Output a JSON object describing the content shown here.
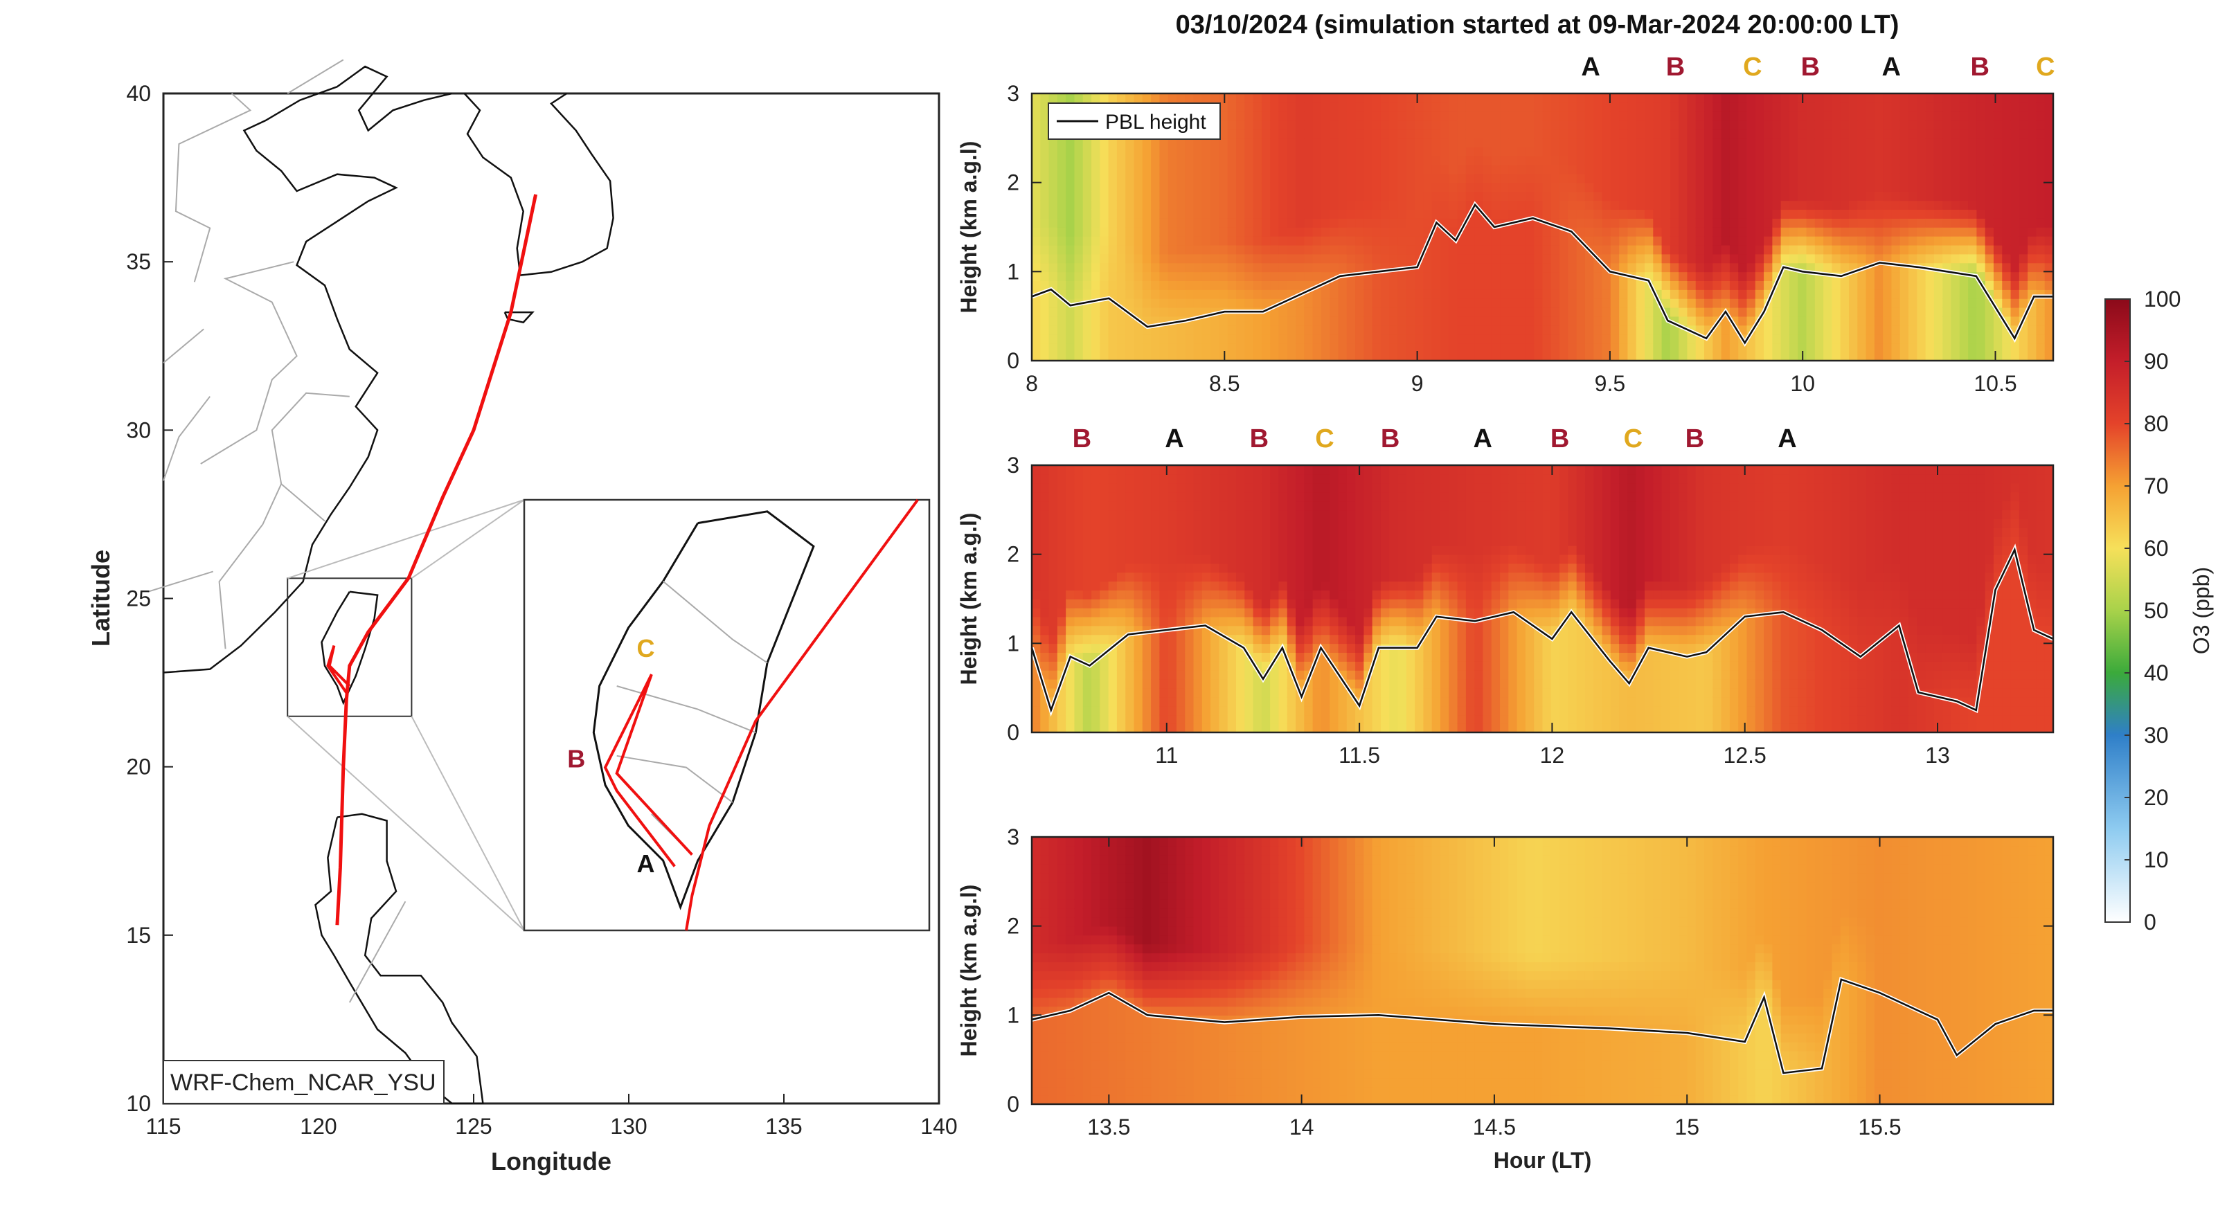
{
  "title": "03/10/2024 (simulation started at 09-Mar-2024 20:00:00 LT)",
  "map": {
    "xlabel": "Longitude",
    "ylabel": "Latitude",
    "xticks": [
      115,
      120,
      125,
      130,
      135,
      140
    ],
    "yticks": [
      10,
      15,
      20,
      25,
      30,
      35,
      40
    ],
    "xlim": [
      115,
      140
    ],
    "ylim": [
      10,
      40
    ],
    "model_label": "WRF-Chem_NCAR_YSU",
    "inset_labels": [
      {
        "text": "C",
        "color": "#E0A81E"
      },
      {
        "text": "B",
        "color": "#A01830"
      },
      {
        "text": "A",
        "color": "#111111"
      }
    ],
    "track_color": "#F01010"
  },
  "chart_data": [
    {
      "type": "heatmap",
      "ylabel": "Height (km a.g.l)",
      "xlim": [
        8.0,
        10.65
      ],
      "ylim": [
        0,
        3
      ],
      "xticks": [
        8,
        8.5,
        9,
        9.5,
        10,
        10.5
      ],
      "yticks": [
        0,
        1,
        2,
        3
      ],
      "legend": {
        "label": "PBL height",
        "placement": "top-left"
      },
      "markers": [
        {
          "t": 9.45,
          "label": "A"
        },
        {
          "t": 9.67,
          "label": "B"
        },
        {
          "t": 9.87,
          "label": "C"
        },
        {
          "t": 10.02,
          "label": "B"
        },
        {
          "t": 10.23,
          "label": "A"
        },
        {
          "t": 10.46,
          "label": "B"
        },
        {
          "t": 10.63,
          "label": "C"
        }
      ],
      "o3_profile": [
        {
          "t": 8.0,
          "surface": 62,
          "aloft": 58
        },
        {
          "t": 8.1,
          "surface": 55,
          "aloft": 50
        },
        {
          "t": 8.2,
          "surface": 64,
          "aloft": 62
        },
        {
          "t": 8.35,
          "surface": 66,
          "aloft": 74
        },
        {
          "t": 8.5,
          "surface": 68,
          "aloft": 76
        },
        {
          "t": 8.7,
          "surface": 72,
          "aloft": 82
        },
        {
          "t": 8.9,
          "surface": 78,
          "aloft": 80
        },
        {
          "t": 9.1,
          "surface": 80,
          "aloft": 78
        },
        {
          "t": 9.3,
          "surface": 80,
          "aloft": 78
        },
        {
          "t": 9.5,
          "surface": 74,
          "aloft": 80
        },
        {
          "t": 9.65,
          "surface": 50,
          "aloft": 82
        },
        {
          "t": 9.8,
          "surface": 70,
          "aloft": 92
        },
        {
          "t": 10.0,
          "surface": 52,
          "aloft": 86
        },
        {
          "t": 10.2,
          "surface": 72,
          "aloft": 84
        },
        {
          "t": 10.45,
          "surface": 50,
          "aloft": 88
        },
        {
          "t": 10.65,
          "surface": 72,
          "aloft": 90
        }
      ],
      "pbl_height": [
        {
          "t": 8.0,
          "h": 0.72
        },
        {
          "t": 8.05,
          "h": 0.8
        },
        {
          "t": 8.1,
          "h": 0.62
        },
        {
          "t": 8.2,
          "h": 0.7
        },
        {
          "t": 8.3,
          "h": 0.38
        },
        {
          "t": 8.4,
          "h": 0.45
        },
        {
          "t": 8.5,
          "h": 0.55
        },
        {
          "t": 8.6,
          "h": 0.55
        },
        {
          "t": 8.7,
          "h": 0.75
        },
        {
          "t": 8.8,
          "h": 0.95
        },
        {
          "t": 8.9,
          "h": 1.0
        },
        {
          "t": 9.0,
          "h": 1.05
        },
        {
          "t": 9.05,
          "h": 1.55
        },
        {
          "t": 9.1,
          "h": 1.35
        },
        {
          "t": 9.15,
          "h": 1.75
        },
        {
          "t": 9.2,
          "h": 1.5
        },
        {
          "t": 9.3,
          "h": 1.6
        },
        {
          "t": 9.4,
          "h": 1.45
        },
        {
          "t": 9.5,
          "h": 1.0
        },
        {
          "t": 9.6,
          "h": 0.9
        },
        {
          "t": 9.65,
          "h": 0.45
        },
        {
          "t": 9.75,
          "h": 0.25
        },
        {
          "t": 9.8,
          "h": 0.55
        },
        {
          "t": 9.85,
          "h": 0.2
        },
        {
          "t": 9.9,
          "h": 0.55
        },
        {
          "t": 9.95,
          "h": 1.05
        },
        {
          "t": 10.0,
          "h": 1.0
        },
        {
          "t": 10.1,
          "h": 0.95
        },
        {
          "t": 10.2,
          "h": 1.1
        },
        {
          "t": 10.3,
          "h": 1.05
        },
        {
          "t": 10.45,
          "h": 0.95
        },
        {
          "t": 10.55,
          "h": 0.25
        },
        {
          "t": 10.6,
          "h": 0.72
        },
        {
          "t": 10.65,
          "h": 0.72
        }
      ]
    },
    {
      "type": "heatmap",
      "ylabel": "Height (km a.g.l)",
      "xlim": [
        10.65,
        13.3
      ],
      "ylim": [
        0,
        3
      ],
      "xticks": [
        11,
        11.5,
        12,
        12.5,
        13
      ],
      "yticks": [
        0,
        1,
        2,
        3
      ],
      "markers": [
        {
          "t": 10.78,
          "label": "B"
        },
        {
          "t": 11.02,
          "label": "A"
        },
        {
          "t": 11.24,
          "label": "B"
        },
        {
          "t": 11.41,
          "label": "C"
        },
        {
          "t": 11.58,
          "label": "B"
        },
        {
          "t": 11.82,
          "label": "A"
        },
        {
          "t": 12.02,
          "label": "B"
        },
        {
          "t": 12.21,
          "label": "C"
        },
        {
          "t": 12.37,
          "label": "B"
        },
        {
          "t": 12.61,
          "label": "A"
        }
      ],
      "o3_profile": [
        {
          "t": 10.65,
          "surface": 74,
          "aloft": 84
        },
        {
          "t": 10.8,
          "surface": 52,
          "aloft": 80
        },
        {
          "t": 11.0,
          "surface": 80,
          "aloft": 82
        },
        {
          "t": 11.25,
          "surface": 55,
          "aloft": 86
        },
        {
          "t": 11.4,
          "surface": 72,
          "aloft": 92
        },
        {
          "t": 11.6,
          "surface": 58,
          "aloft": 86
        },
        {
          "t": 11.8,
          "surface": 80,
          "aloft": 84
        },
        {
          "t": 12.0,
          "surface": 62,
          "aloft": 82
        },
        {
          "t": 12.2,
          "surface": 66,
          "aloft": 92
        },
        {
          "t": 12.4,
          "surface": 64,
          "aloft": 84
        },
        {
          "t": 12.6,
          "surface": 78,
          "aloft": 82
        },
        {
          "t": 12.9,
          "surface": 84,
          "aloft": 86
        },
        {
          "t": 13.1,
          "surface": 80,
          "aloft": 86
        },
        {
          "t": 13.3,
          "surface": 80,
          "aloft": 84
        }
      ],
      "pbl_height": [
        {
          "t": 10.65,
          "h": 0.95
        },
        {
          "t": 10.7,
          "h": 0.25
        },
        {
          "t": 10.75,
          "h": 0.85
        },
        {
          "t": 10.8,
          "h": 0.75
        },
        {
          "t": 10.9,
          "h": 1.1
        },
        {
          "t": 11.0,
          "h": 1.15
        },
        {
          "t": 11.1,
          "h": 1.2
        },
        {
          "t": 11.2,
          "h": 0.95
        },
        {
          "t": 11.25,
          "h": 0.6
        },
        {
          "t": 11.3,
          "h": 0.95
        },
        {
          "t": 11.35,
          "h": 0.4
        },
        {
          "t": 11.4,
          "h": 0.95
        },
        {
          "t": 11.5,
          "h": 0.3
        },
        {
          "t": 11.55,
          "h": 0.95
        },
        {
          "t": 11.65,
          "h": 0.95
        },
        {
          "t": 11.7,
          "h": 1.3
        },
        {
          "t": 11.8,
          "h": 1.25
        },
        {
          "t": 11.9,
          "h": 1.35
        },
        {
          "t": 12.0,
          "h": 1.05
        },
        {
          "t": 12.05,
          "h": 1.35
        },
        {
          "t": 12.15,
          "h": 0.8
        },
        {
          "t": 12.2,
          "h": 0.55
        },
        {
          "t": 12.25,
          "h": 0.95
        },
        {
          "t": 12.35,
          "h": 0.85
        },
        {
          "t": 12.4,
          "h": 0.9
        },
        {
          "t": 12.5,
          "h": 1.3
        },
        {
          "t": 12.6,
          "h": 1.35
        },
        {
          "t": 12.7,
          "h": 1.15
        },
        {
          "t": 12.8,
          "h": 0.85
        },
        {
          "t": 12.9,
          "h": 1.2
        },
        {
          "t": 12.95,
          "h": 0.45
        },
        {
          "t": 13.05,
          "h": 0.35
        },
        {
          "t": 13.1,
          "h": 0.25
        },
        {
          "t": 13.15,
          "h": 1.6
        },
        {
          "t": 13.2,
          "h": 2.05
        },
        {
          "t": 13.25,
          "h": 1.15
        },
        {
          "t": 13.3,
          "h": 1.05
        }
      ]
    },
    {
      "type": "heatmap",
      "xlabel": "Hour (LT)",
      "ylabel": "Height (km a.g.l)",
      "xlim": [
        13.3,
        15.95
      ],
      "ylim": [
        0,
        3
      ],
      "xticks": [
        13.5,
        14,
        14.5,
        15,
        15.5
      ],
      "yticks": [
        0,
        1,
        2,
        3
      ],
      "o3_profile": [
        {
          "t": 13.3,
          "surface": 76,
          "aloft": 86
        },
        {
          "t": 13.6,
          "surface": 74,
          "aloft": 96
        },
        {
          "t": 13.9,
          "surface": 72,
          "aloft": 84
        },
        {
          "t": 14.2,
          "surface": 70,
          "aloft": 70
        },
        {
          "t": 14.6,
          "surface": 70,
          "aloft": 62
        },
        {
          "t": 15.0,
          "surface": 68,
          "aloft": 66
        },
        {
          "t": 15.2,
          "surface": 62,
          "aloft": 70
        },
        {
          "t": 15.5,
          "surface": 72,
          "aloft": 72
        },
        {
          "t": 15.95,
          "surface": 70,
          "aloft": 70
        }
      ],
      "pbl_height": [
        {
          "t": 13.3,
          "h": 0.95
        },
        {
          "t": 13.4,
          "h": 1.05
        },
        {
          "t": 13.5,
          "h": 1.25
        },
        {
          "t": 13.6,
          "h": 1.0
        },
        {
          "t": 13.8,
          "h": 0.92
        },
        {
          "t": 14.0,
          "h": 0.98
        },
        {
          "t": 14.2,
          "h": 1.0
        },
        {
          "t": 14.5,
          "h": 0.9
        },
        {
          "t": 14.8,
          "h": 0.85
        },
        {
          "t": 15.0,
          "h": 0.8
        },
        {
          "t": 15.15,
          "h": 0.7
        },
        {
          "t": 15.2,
          "h": 1.2
        },
        {
          "t": 15.25,
          "h": 0.35
        },
        {
          "t": 15.35,
          "h": 0.4
        },
        {
          "t": 15.4,
          "h": 1.4
        },
        {
          "t": 15.5,
          "h": 1.25
        },
        {
          "t": 15.65,
          "h": 0.95
        },
        {
          "t": 15.7,
          "h": 0.55
        },
        {
          "t": 15.8,
          "h": 0.9
        },
        {
          "t": 15.9,
          "h": 1.05
        },
        {
          "t": 15.95,
          "h": 1.05
        }
      ]
    }
  ],
  "colorbar": {
    "label": "O3 (ppb)",
    "ticks": [
      0,
      10,
      20,
      30,
      40,
      50,
      60,
      70,
      80,
      90,
      100
    ],
    "range": [
      0,
      100
    ],
    "stops": [
      {
        "v": 0,
        "color": "#FFFFFF"
      },
      {
        "v": 15,
        "color": "#8ECBF0"
      },
      {
        "v": 30,
        "color": "#2F7FC8"
      },
      {
        "v": 40,
        "color": "#3BAA3B"
      },
      {
        "v": 50,
        "color": "#A8D24A"
      },
      {
        "v": 60,
        "color": "#F6E05A"
      },
      {
        "v": 70,
        "color": "#F5A133"
      },
      {
        "v": 80,
        "color": "#E4432A"
      },
      {
        "v": 90,
        "color": "#C41E2A"
      },
      {
        "v": 100,
        "color": "#8B0A1A"
      }
    ]
  },
  "marker_colors": {
    "A": "#111111",
    "B": "#A01830",
    "C": "#E0A81E"
  }
}
